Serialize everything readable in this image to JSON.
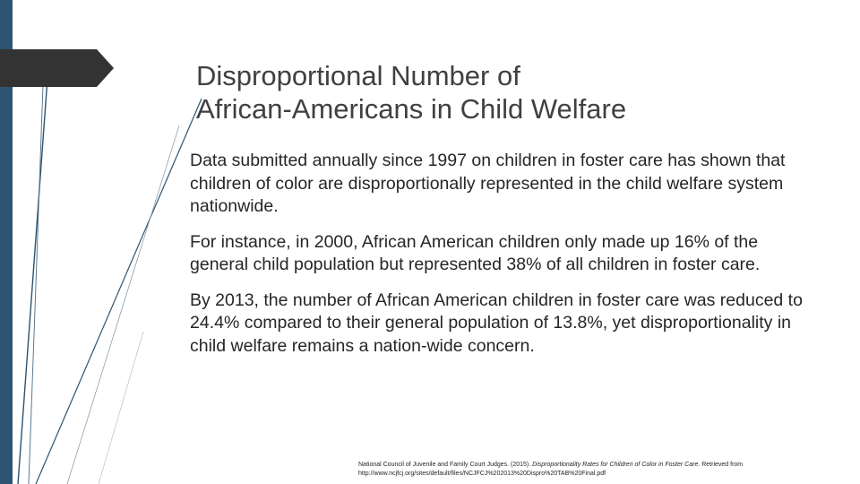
{
  "slide": {
    "title_line1": "Disproportional Number of",
    "title_line2": "African-Americans in Child Welfare",
    "paragraphs": [
      "Data submitted annually since 1997 on children in foster care has shown that children of color are disproportionally represented in the child welfare system nationwide.",
      "For instance, in 2000, African American children only made up 16% of the general child population but represented 38% of all children in foster care.",
      "By 2013, the number of African American children in foster care was reduced to 24.4% compared to their general population of 13.8%, yet disproportionality in child welfare remains a nation-wide concern."
    ],
    "citation": {
      "authors": "National Council of Juvenile and Family Court Judges. (2015). ",
      "title": "Disproportionality Rates for Children of Color in Foster Care",
      "rest": ". Retrieved from",
      "url": "http://www.ncjfcj.org/sites/default/files/NCJFCJ%202013%20Dispro%20TAB%20Final.pdf"
    }
  },
  "colors": {
    "sidebar": "#2d5470",
    "title_arrow": "#333333",
    "title_text": "#404040",
    "body_text": "#262626"
  }
}
